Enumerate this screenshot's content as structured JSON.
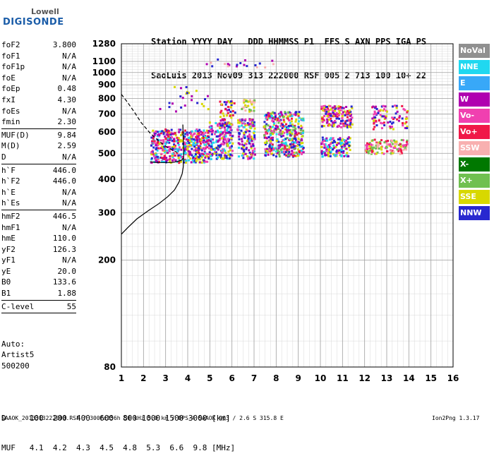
{
  "logo": {
    "line1": "Lowell",
    "line2": "DIGISONDE"
  },
  "header": {
    "line1": "Station YYYY DAY   DDD HHMMSS P1  FFS S AXN PPS IGA PS",
    "line2": "SaoLuis 2013 Nov09 313 222000 RSF 005 2 713 100 10+ 22"
  },
  "params": {
    "group1": [
      {
        "label": "foF2",
        "value": "3.800"
      },
      {
        "label": "foF1",
        "value": "N/A"
      },
      {
        "label": "foF1p",
        "value": "N/A"
      },
      {
        "label": "foE",
        "value": "N/A"
      },
      {
        "label": "foEp",
        "value": "0.48"
      },
      {
        "label": "fxI",
        "value": "4.30"
      },
      {
        "label": "foEs",
        "value": "N/A"
      },
      {
        "label": "fmin",
        "value": "2.30"
      }
    ],
    "group2": [
      {
        "label": "MUF(D)",
        "value": "9.84"
      },
      {
        "label": "M(D)",
        "value": "2.59"
      },
      {
        "label": "D",
        "value": "N/A"
      }
    ],
    "group3": [
      {
        "label": "h`F",
        "value": "446.0"
      },
      {
        "label": "h`F2",
        "value": "446.0"
      },
      {
        "label": "h`E",
        "value": "N/A"
      },
      {
        "label": "h`Es",
        "value": "N/A"
      }
    ],
    "group4": [
      {
        "label": "hmF2",
        "value": "446.5"
      },
      {
        "label": "hmF1",
        "value": "N/A"
      },
      {
        "label": "hmE",
        "value": "110.0"
      },
      {
        "label": "yF2",
        "value": "126.3"
      },
      {
        "label": "yF1",
        "value": "N/A"
      },
      {
        "label": "yE",
        "value": "20.0"
      },
      {
        "label": "B0",
        "value": "133.6"
      },
      {
        "label": "B1",
        "value": "1.88"
      }
    ],
    "group5": [
      {
        "label": "C-level",
        "value": "55"
      }
    ]
  },
  "auto": {
    "line1": "Auto:",
    "line2": "Artist5",
    "line3": "500200"
  },
  "legend": [
    {
      "label": "NoVal",
      "color": "#909090"
    },
    {
      "label": "NNE",
      "color": "#20d8f0"
    },
    {
      "label": "E",
      "color": "#38a8f8"
    },
    {
      "label": "W",
      "color": "#b000b0"
    },
    {
      "label": "Vo-",
      "color": "#f040b0"
    },
    {
      "label": "Vo+",
      "color": "#f01848"
    },
    {
      "label": "SSW",
      "color": "#f8b0b0"
    },
    {
      "label": "X-",
      "color": "#007800"
    },
    {
      "label": "X+",
      "color": "#70c050"
    },
    {
      "label": "SSE",
      "color": "#d8d800"
    },
    {
      "label": "NNW",
      "color": "#2828d0"
    }
  ],
  "footer": {
    "line1": "D     100  200  400  600  800 1000 1500 3000 [km]",
    "line2": "MUF   4.1  4.2  4.3  4.5  4.8  5.3  6.6  9.8 [MHz]",
    "line3": "SAAOK_2013313222000.RSF / 300fx256h 50 kHz 5.0 km / DPS-4 SAAOK 903 / 2.6 S 315.8 E",
    "version": "Ion2Png 1.3.17"
  },
  "chart_data": {
    "type": "scatter",
    "title": "",
    "xlabel": "",
    "ylabel": "",
    "xlim": [
      1,
      16
    ],
    "ylim": [
      80,
      1280
    ],
    "y_scale": "log",
    "x_ticks": [
      1,
      2,
      3,
      4,
      5,
      6,
      7,
      8,
      9,
      10,
      11,
      12,
      13,
      14,
      15,
      16
    ],
    "y_ticks": [
      80,
      200,
      300,
      400,
      500,
      600,
      700,
      800,
      900,
      1000,
      1100,
      1280
    ],
    "grid": true,
    "legend_position": "right",
    "series": [
      {
        "name": "hmF2 profile",
        "kind": "line",
        "style": "solid",
        "x": [
          1.0,
          1.3,
          1.7,
          2.2,
          2.7,
          3.1,
          3.4,
          3.6,
          3.75,
          3.8,
          3.82,
          3.8,
          3.78
        ],
        "y": [
          250,
          265,
          285,
          305,
          325,
          345,
          365,
          390,
          420,
          446,
          500,
          560,
          640
        ]
      },
      {
        "name": "MUF extrapolation",
        "kind": "line",
        "style": "dashed",
        "x": [
          1.0,
          1.3,
          1.6,
          1.9,
          2.3,
          2.7,
          3.1,
          3.5
        ],
        "y": [
          830,
          770,
          710,
          650,
          595,
          555,
          525,
          505
        ]
      },
      {
        "name": "trace",
        "kind": "line",
        "style": "solid",
        "x": [
          2.3,
          2.6,
          3.0,
          3.3,
          3.7,
          3.8
        ],
        "y": [
          465,
          462,
          462,
          462,
          470,
          480
        ]
      }
    ],
    "clusters": [
      {
        "x": [
          2.3,
          4.9
        ],
        "y": [
          465,
          620
        ],
        "n": 480,
        "colors": [
          "#b000b0",
          "#2828d0",
          "#f040b0",
          "#d8d800",
          "#f01848",
          "#20d8f0"
        ]
      },
      {
        "x": [
          4.9,
          6.0
        ],
        "y": [
          480,
          660
        ],
        "n": 200,
        "colors": [
          "#2828d0",
          "#b000b0",
          "#f040b0",
          "#d8d800",
          "#20d8f0"
        ]
      },
      {
        "x": [
          5.4,
          6.1
        ],
        "y": [
          640,
          790
        ],
        "n": 50,
        "colors": [
          "#2828d0",
          "#b000b0",
          "#d8d800",
          "#f01848"
        ]
      },
      {
        "x": [
          6.2,
          7.0
        ],
        "y": [
          480,
          680
        ],
        "n": 150,
        "colors": [
          "#d8d800",
          "#2828d0",
          "#b000b0",
          "#20d8f0",
          "#f040b0"
        ]
      },
      {
        "x": [
          6.4,
          7.0
        ],
        "y": [
          720,
          800
        ],
        "n": 30,
        "colors": [
          "#d8d800",
          "#70c050",
          "#f8b0b0"
        ]
      },
      {
        "x": [
          7.4,
          9.2
        ],
        "y": [
          490,
          720
        ],
        "n": 420,
        "colors": [
          "#b000b0",
          "#2828d0",
          "#f01848",
          "#f040b0",
          "#d8d800",
          "#20d8f0",
          "#70c050"
        ]
      },
      {
        "x": [
          10.0,
          11.3
        ],
        "y": [
          490,
          580
        ],
        "n": 140,
        "colors": [
          "#2828d0",
          "#b000b0",
          "#20d8f0",
          "#f040b0",
          "#d8d800"
        ]
      },
      {
        "x": [
          10.0,
          11.4
        ],
        "y": [
          630,
          760
        ],
        "n": 170,
        "colors": [
          "#f01848",
          "#b000b0",
          "#f040b0",
          "#2828d0",
          "#d8d800"
        ]
      },
      {
        "x": [
          12.0,
          13.9
        ],
        "y": [
          500,
          570
        ],
        "n": 130,
        "colors": [
          "#f01848",
          "#f040b0",
          "#d8d800",
          "#70c050",
          "#f8b0b0"
        ]
      },
      {
        "x": [
          12.3,
          13.9
        ],
        "y": [
          620,
          760
        ],
        "n": 90,
        "colors": [
          "#f040b0",
          "#2828d0",
          "#b000b0",
          "#f01848",
          "#d8d800"
        ]
      },
      {
        "x": [
          2.5,
          4.9
        ],
        "y": [
          720,
          900
        ],
        "n": 25,
        "colors": [
          "#d8d800",
          "#2828d0",
          "#b000b0"
        ]
      },
      {
        "x": [
          4.8,
          8.0
        ],
        "y": [
          1050,
          1130
        ],
        "n": 20,
        "colors": [
          "#f8b0b0",
          "#b000b0",
          "#2828d0"
        ]
      }
    ]
  }
}
